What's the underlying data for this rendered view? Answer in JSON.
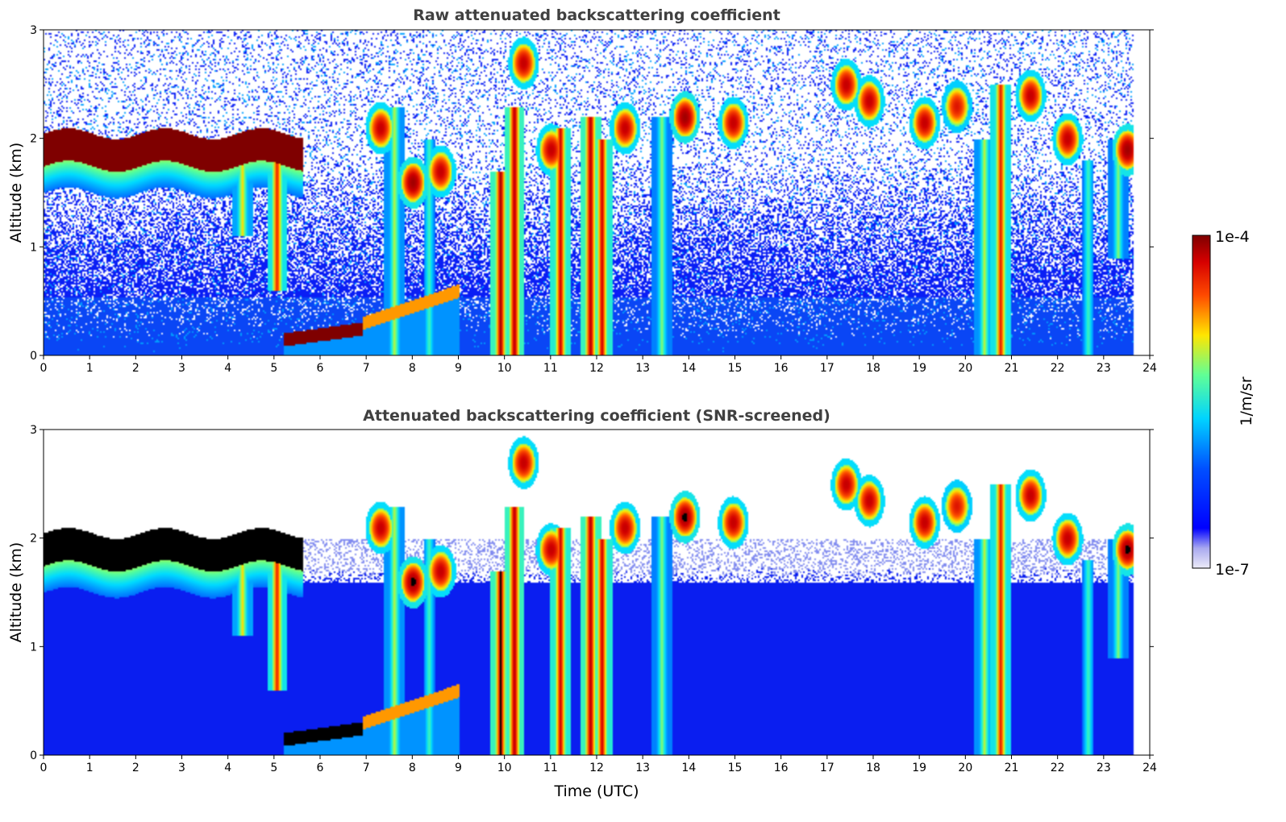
{
  "chart_data": [
    {
      "type": "heatmap",
      "title": "Raw attenuated backscattering coefficient",
      "xlabel": "",
      "ylabel": "Altitude (km)",
      "xlim": [
        0,
        24
      ],
      "ylim": [
        0,
        3
      ],
      "x_ticks": [
        "0",
        "1",
        "2",
        "3",
        "4",
        "5",
        "6",
        "7",
        "8",
        "9",
        "10",
        "11",
        "12",
        "13",
        "14",
        "15",
        "16",
        "17",
        "18",
        "19",
        "20",
        "21",
        "22",
        "23",
        "24"
      ],
      "y_ticks": [
        "0",
        "1",
        "2",
        "3"
      ],
      "data_end_time": 23.65,
      "noise": "high",
      "features": [
        {
          "kind": "cloud_layer",
          "t0": 0.0,
          "t1": 5.6,
          "alt_base": 1.75,
          "alt_top": 2.05,
          "level": 1.0
        },
        {
          "kind": "boundary_layer",
          "t0": 5.2,
          "t1": 6.9,
          "alt_base": 0.15,
          "alt_top": 0.25,
          "level": 1.0
        },
        {
          "kind": "rising_layer",
          "t0": 6.9,
          "t1": 9.0,
          "alt_base": 0.3,
          "alt_top": 0.6,
          "level": 0.7
        },
        {
          "kind": "precip_column",
          "t": 4.3,
          "alt_top": 1.9,
          "alt_bottom": 1.1,
          "level": 0.65
        },
        {
          "kind": "precip_column",
          "t": 5.05,
          "alt_top": 1.95,
          "alt_bottom": 0.6,
          "level": 0.85
        },
        {
          "kind": "precip_column",
          "t": 7.6,
          "alt_top": 2.3,
          "alt_bottom": 0.0,
          "level": 0.6
        },
        {
          "kind": "precip_column",
          "t": 8.35,
          "alt_top": 2.0,
          "alt_bottom": 0.0,
          "level": 0.5
        },
        {
          "kind": "precip_column",
          "t": 9.9,
          "alt_top": 1.7,
          "alt_bottom": 0.0,
          "level": 0.95
        },
        {
          "kind": "precip_column",
          "t": 10.2,
          "alt_top": 2.3,
          "alt_bottom": 0.0,
          "level": 0.95
        },
        {
          "kind": "precip_column",
          "t": 11.2,
          "alt_top": 2.1,
          "alt_bottom": 0.0,
          "level": 0.9
        },
        {
          "kind": "precip_column",
          "t": 11.85,
          "alt_top": 2.2,
          "alt_bottom": 0.0,
          "level": 0.95
        },
        {
          "kind": "precip_column",
          "t": 12.1,
          "alt_top": 2.0,
          "alt_bottom": 0.0,
          "level": 0.9
        },
        {
          "kind": "precip_column",
          "t": 13.4,
          "alt_top": 2.2,
          "alt_bottom": 0.0,
          "level": 0.55
        },
        {
          "kind": "precip_column",
          "t": 20.4,
          "alt_top": 2.0,
          "alt_bottom": 0.0,
          "level": 0.6
        },
        {
          "kind": "precip_column",
          "t": 20.75,
          "alt_top": 2.5,
          "alt_bottom": 0.0,
          "level": 0.85
        },
        {
          "kind": "precip_column",
          "t": 22.65,
          "alt_top": 1.8,
          "alt_bottom": 0.0,
          "level": 0.5
        },
        {
          "kind": "precip_column",
          "t": 23.3,
          "alt_top": 2.0,
          "alt_bottom": 0.9,
          "level": 0.55
        },
        {
          "kind": "cloud_blob",
          "t": 7.3,
          "alt": 2.1,
          "level": 0.9
        },
        {
          "kind": "cloud_blob",
          "t": 8.0,
          "alt": 1.6,
          "level": 0.95
        },
        {
          "kind": "cloud_blob",
          "t": 8.6,
          "alt": 1.7,
          "level": 0.9
        },
        {
          "kind": "cloud_blob",
          "t": 10.4,
          "alt": 2.7,
          "level": 0.9
        },
        {
          "kind": "cloud_blob",
          "t": 11.0,
          "alt": 1.9,
          "level": 0.9
        },
        {
          "kind": "cloud_blob",
          "t": 12.6,
          "alt": 2.1,
          "level": 0.9
        },
        {
          "kind": "cloud_blob",
          "t": 13.9,
          "alt": 2.2,
          "level": 0.95
        },
        {
          "kind": "cloud_blob",
          "t": 14.95,
          "alt": 2.15,
          "level": 0.9
        },
        {
          "kind": "cloud_blob",
          "t": 17.4,
          "alt": 2.5,
          "level": 0.9
        },
        {
          "kind": "cloud_blob",
          "t": 17.9,
          "alt": 2.35,
          "level": 0.9
        },
        {
          "kind": "cloud_blob",
          "t": 19.1,
          "alt": 2.15,
          "level": 0.9
        },
        {
          "kind": "cloud_blob",
          "t": 19.8,
          "alt": 2.3,
          "level": 0.85
        },
        {
          "kind": "cloud_blob",
          "t": 21.4,
          "alt": 2.4,
          "level": 0.9
        },
        {
          "kind": "cloud_blob",
          "t": 22.2,
          "alt": 2.0,
          "level": 0.9
        },
        {
          "kind": "cloud_blob",
          "t": 23.5,
          "alt": 1.9,
          "level": 0.95
        }
      ]
    },
    {
      "type": "heatmap",
      "title": "Attenuated backscattering coefficient (SNR-screened)",
      "xlabel": "Time (UTC)",
      "ylabel": "Altitude (km)",
      "xlim": [
        0,
        24
      ],
      "ylim": [
        0,
        3
      ],
      "x_ticks": [
        "0",
        "1",
        "2",
        "3",
        "4",
        "5",
        "6",
        "7",
        "8",
        "9",
        "10",
        "11",
        "12",
        "13",
        "14",
        "15",
        "16",
        "17",
        "18",
        "19",
        "20",
        "21",
        "22",
        "23",
        "24"
      ],
      "y_ticks": [
        "0",
        "1",
        "2",
        "3"
      ],
      "data_end_time": 23.65,
      "noise": "screened",
      "saturated_color": "#000000",
      "features": "same as raw panel"
    }
  ],
  "colorbar": {
    "label": "1/m/sr",
    "max_label": "1e-4",
    "min_label": "1e-7",
    "colormap": "jet",
    "scale": "log"
  },
  "colors": {
    "title": "#404040",
    "background": "#ffffff",
    "low": "#0000ff",
    "high": "#7f0000"
  }
}
